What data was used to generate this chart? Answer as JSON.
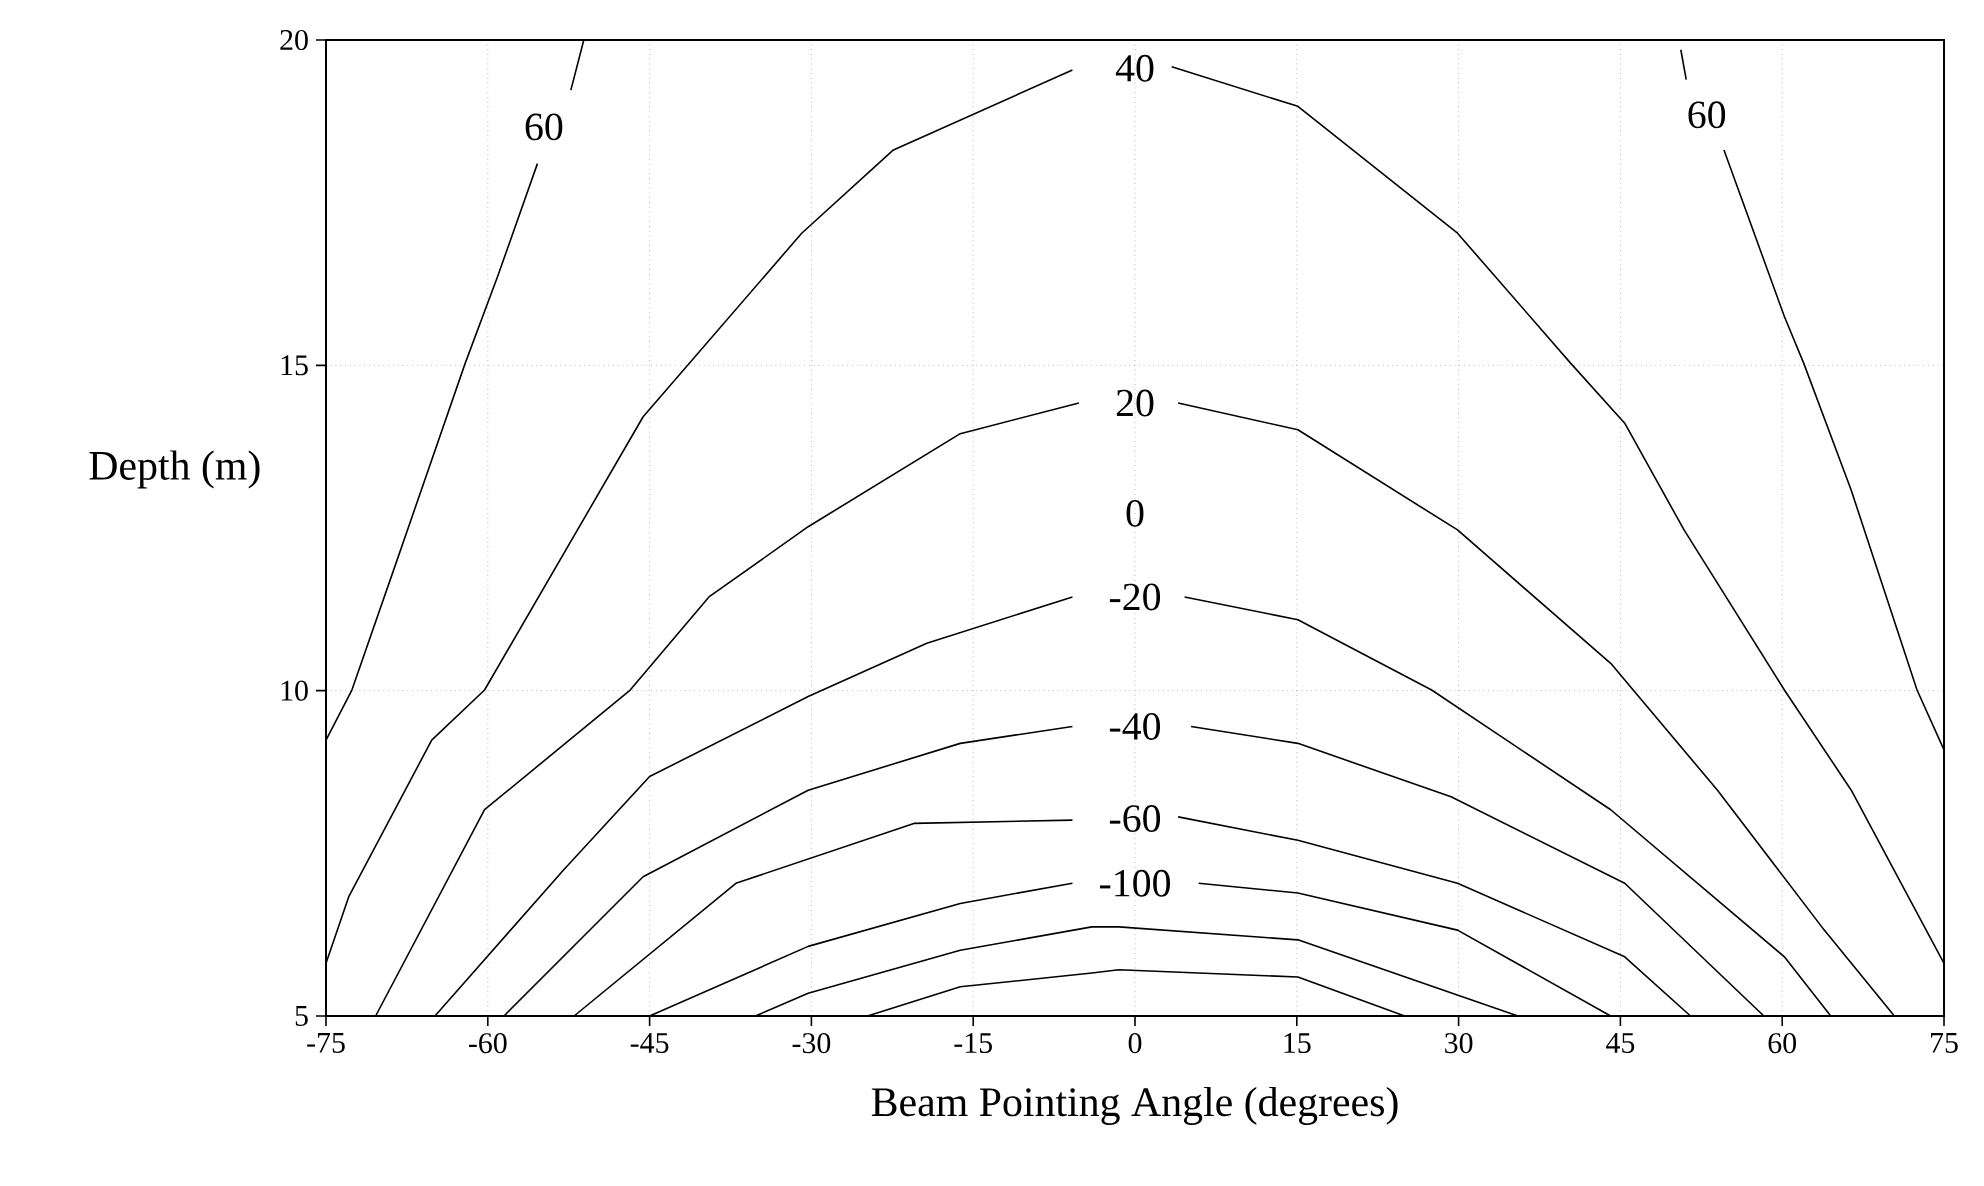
{
  "chart_data": {
    "type": "line",
    "xlabel": "Beam Pointing Angle (degrees)",
    "ylabel": "Depth (m)",
    "xlim": [
      -75,
      75
    ],
    "ylim": [
      5,
      20
    ],
    "xticks": [
      -75,
      -60,
      -45,
      -30,
      -15,
      0,
      15,
      30,
      45,
      60,
      75
    ],
    "yticks": [
      5,
      10,
      15,
      20
    ],
    "grid": true,
    "series": [
      {
        "name": "60",
        "color": "#000000",
        "x": [
          -75,
          -72.6,
          -68.3,
          -62.1,
          -59.1,
          -55.4,
          -54.8,
          -52.3,
          -51.1
        ],
        "values": [
          9.24,
          10.01,
          12.06,
          15.03,
          16.36,
          18.1,
          null,
          19.23,
          20
        ]
      },
      {
        "name": "60",
        "color": "#000000",
        "x": [
          50.6,
          51.1,
          53.0,
          54.6,
          60.2,
          62.0,
          66.4,
          72.5,
          75
        ],
        "values": [
          19.85,
          19.39,
          null,
          18.31,
          15.75,
          15.03,
          13.08,
          10.01,
          9.09
        ]
      },
      {
        "name": "40",
        "color": "#000000",
        "x": [
          -75,
          -72.9,
          -65.2,
          -60.3,
          -45.6,
          -30.9,
          -22.4,
          -5.8,
          0,
          3.4,
          15.1,
          29.9,
          40.4,
          45.4,
          50.9,
          60.2,
          66.4,
          75
        ],
        "values": [
          5.81,
          6.83,
          9.24,
          10.01,
          14.21,
          17.03,
          18.31,
          19.54,
          null,
          19.59,
          18.98,
          17.03,
          15.03,
          14.11,
          12.47,
          10.01,
          8.47,
          5.81
        ]
      },
      {
        "name": "20",
        "color": "#000000",
        "x": [
          -70.4,
          -60.3,
          -46.8,
          -39.5,
          -30.3,
          -16.2,
          -5.2,
          0,
          4.0,
          15.1,
          29.9,
          44.1,
          54.0,
          63.9,
          70.4
        ],
        "values": [
          5,
          8.17,
          10.01,
          11.44,
          12.52,
          13.95,
          14.42,
          null,
          14.42,
          14.01,
          12.47,
          10.42,
          8.47,
          6.32,
          5
        ]
      },
      {
        "name": "-20",
        "color": "#000000",
        "x": [
          -64.9,
          -53,
          -45,
          -30.3,
          -19.3,
          -5.8,
          0,
          4.6,
          15.1,
          27.5,
          44.1,
          60.2,
          64.5
        ],
        "values": [
          5,
          7.24,
          8.68,
          9.91,
          10.73,
          11.44,
          null,
          11.44,
          11.09,
          10.01,
          8.17,
          5.91,
          5
        ]
      },
      {
        "name": "-40",
        "color": "#000000",
        "x": [
          -58.5,
          -45.6,
          -30.3,
          -16.2,
          -5.8,
          0,
          5.2,
          15.1,
          29.3,
          45.4,
          58.3
        ],
        "values": [
          5,
          7.14,
          8.47,
          9.19,
          9.45,
          null,
          9.45,
          9.19,
          8.37,
          7.04,
          5
        ]
      },
      {
        "name": "-60",
        "color": "#000000",
        "x": [
          -52,
          -37,
          -20.5,
          -5.8,
          0,
          4.0,
          15.1,
          29.9,
          45.4,
          51.5
        ],
        "values": [
          5,
          7.04,
          7.96,
          8.01,
          null,
          8.06,
          7.7,
          7.04,
          5.91,
          5
        ]
      },
      {
        "name": "-100",
        "color": "#000000",
        "x": [
          -45,
          -30.3,
          -16.2,
          -5.8,
          0,
          5.9,
          15.1,
          29.9,
          44.1
        ],
        "values": [
          5,
          6.07,
          6.73,
          7.04,
          null,
          7.04,
          6.89,
          6.32,
          5
        ]
      },
      {
        "color": "#000000",
        "x": [
          -35.2,
          -30.3,
          -16.2,
          -4,
          -1.5,
          15.1,
          35.5
        ],
        "values": [
          5,
          5.35,
          6.01,
          6.37,
          6.37,
          6.17,
          5
        ]
      },
      {
        "color": "#000000",
        "x": [
          -24.8,
          -16.2,
          -4,
          -1.5,
          15.1,
          25.0
        ],
        "values": [
          5,
          5.45,
          5.66,
          5.71,
          5.6,
          5
        ]
      }
    ],
    "annotations": [
      "0"
    ]
  }
}
